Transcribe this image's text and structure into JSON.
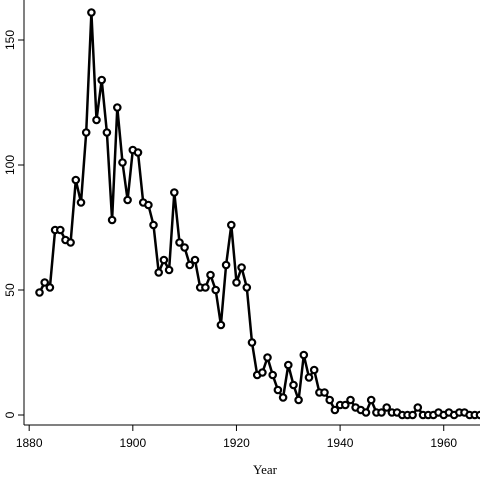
{
  "chart_data": {
    "type": "line",
    "title": "",
    "xlabel": "Year",
    "ylabel": "",
    "xlim": [
      1879,
      1967
    ],
    "ylim": [
      -4,
      166
    ],
    "x_ticks": [
      1880,
      1900,
      1920,
      1940,
      1960
    ],
    "y_ticks": [
      0,
      50,
      100,
      150
    ],
    "grid": false,
    "legend": "none",
    "line_color": "#000000",
    "marker": "open-circle",
    "series": [
      {
        "x": [
          1882,
          1883,
          1884,
          1885,
          1886,
          1887,
          1888,
          1889,
          1890,
          1891,
          1892,
          1893,
          1894,
          1895,
          1896,
          1897,
          1898,
          1899,
          1900,
          1901,
          1902,
          1903,
          1904,
          1905,
          1906,
          1907,
          1908,
          1909,
          1910,
          1911,
          1912,
          1913,
          1914,
          1915,
          1916,
          1917,
          1918,
          1919,
          1920,
          1921,
          1922,
          1923,
          1924,
          1925,
          1926,
          1927,
          1928,
          1929,
          1930,
          1931,
          1932,
          1933,
          1934,
          1935,
          1936,
          1937,
          1938,
          1939,
          1940,
          1941,
          1942,
          1943,
          1944,
          1945,
          1946,
          1947,
          1948,
          1949,
          1950,
          1951,
          1952,
          1953,
          1954,
          1955,
          1956,
          1957,
          1958,
          1959,
          1960,
          1961,
          1962,
          1963,
          1964,
          1965,
          1966,
          1967
        ],
        "y": [
          49,
          53,
          51,
          74,
          74,
          70,
          69,
          94,
          85,
          113,
          161,
          118,
          134,
          113,
          78,
          123,
          101,
          86,
          106,
          105,
          85,
          84,
          76,
          57,
          62,
          58,
          89,
          69,
          67,
          60,
          62,
          51,
          51,
          56,
          50,
          36,
          60,
          76,
          53,
          59,
          51,
          29,
          16,
          17,
          23,
          16,
          10,
          7,
          20,
          12,
          6,
          24,
          15,
          18,
          9,
          9,
          6,
          2,
          4,
          4,
          6,
          3,
          2,
          1,
          6,
          1,
          1,
          3,
          1,
          1,
          0,
          0,
          0,
          3,
          0,
          0,
          0,
          1,
          0,
          1,
          0,
          1,
          1,
          0,
          0,
          0
        ]
      }
    ]
  }
}
